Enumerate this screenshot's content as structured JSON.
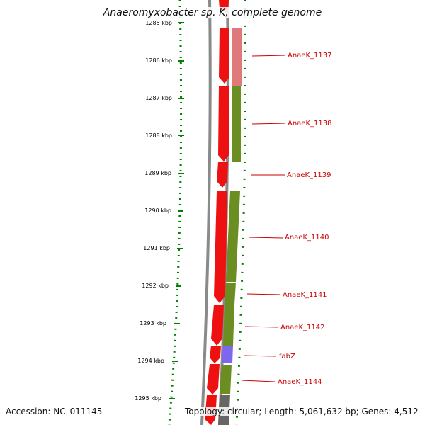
{
  "title": "Anaeromyxobacter sp. K, complete genome",
  "footer": {
    "accession": "Accession: NC_011145",
    "topology": "Topology: circular; Length: 5,061,632 bp; Genes: 4,512"
  },
  "colors": {
    "forward_gene": "#ee1111",
    "label_red": "#cc0000",
    "ruler_green": "#008000",
    "backbone_gray": "#888888",
    "pink": "#e07a7a",
    "olive": "#6b8e23",
    "purple": "#7b68ee",
    "dark_gray": "#666666"
  },
  "ruler_labels": [
    "1285 kbp",
    "1286 kbp",
    "1287 kbp",
    "1288 kbp",
    "1289 kbp",
    "1290 kbp",
    "1291 kbp",
    "1292 kbp",
    "1293 kbp",
    "1294 kbp",
    "1295 kbp"
  ],
  "gene_labels": [
    "AnaeK_1137",
    "AnaeK_1138",
    "AnaeK_1139",
    "AnaeK_1140",
    "AnaeK_1141",
    "AnaeK_1142",
    "fabZ",
    "AnaeK_1144"
  ]
}
